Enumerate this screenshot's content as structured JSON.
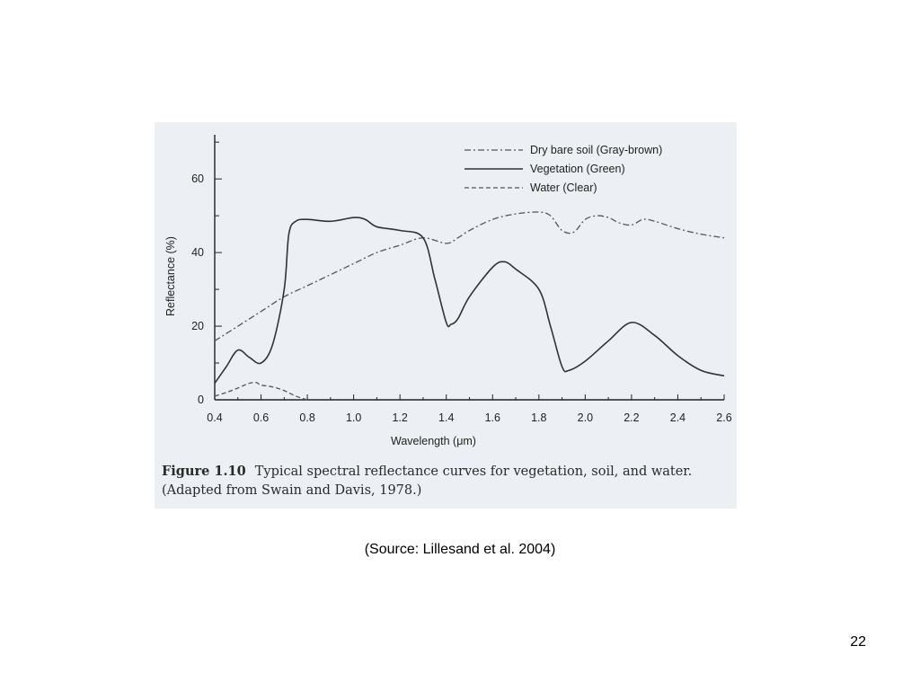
{
  "caption": {
    "figure_number": "Figure 1.10",
    "text": "Typical spectral reflectance curves for vegetation, soil, and water.",
    "adapted": "(Adapted from Swain and Davis, 1978.)"
  },
  "source": "(Source: Lillesand et al. 2004)",
  "page_number": "22",
  "chart_data": {
    "type": "line",
    "xlabel": "Wavelength (μm)",
    "ylabel": "Reflectance (%)",
    "xlim": [
      0.4,
      2.6
    ],
    "ylim": [
      0,
      72
    ],
    "x_ticks": [
      "0.4",
      "0.6",
      "0.8",
      "1.0",
      "1.2",
      "1.4",
      "1.6",
      "1.8",
      "2.0",
      "2.2",
      "2.4",
      "2.6"
    ],
    "y_ticks": [
      "0",
      "20",
      "40",
      "60"
    ],
    "grid": false,
    "legend_position": "top-right",
    "series": [
      {
        "name": "Dry bare soil (Gray-brown)",
        "style": "dash-dot",
        "color": "#555555",
        "x": [
          0.4,
          0.5,
          0.6,
          0.7,
          0.8,
          0.9,
          1.0,
          1.1,
          1.2,
          1.3,
          1.4,
          1.45,
          1.5,
          1.6,
          1.7,
          1.8,
          1.85,
          1.9,
          1.95,
          2.0,
          2.05,
          2.1,
          2.15,
          2.2,
          2.25,
          2.3,
          2.4,
          2.5,
          2.6
        ],
        "y": [
          16,
          20,
          24,
          28,
          31,
          34,
          37,
          40,
          42,
          44,
          42.5,
          44,
          46,
          49,
          50.5,
          51,
          50,
          46,
          45.5,
          49,
          50,
          49.5,
          48,
          47.5,
          49,
          48.5,
          46.5,
          45,
          44
        ]
      },
      {
        "name": "Vegetation (Green)",
        "style": "solid",
        "color": "#333333",
        "x": [
          0.4,
          0.45,
          0.5,
          0.55,
          0.6,
          0.65,
          0.7,
          0.72,
          0.75,
          0.8,
          0.9,
          1.0,
          1.05,
          1.1,
          1.2,
          1.3,
          1.35,
          1.4,
          1.42,
          1.45,
          1.5,
          1.6,
          1.65,
          1.7,
          1.8,
          1.85,
          1.9,
          1.93,
          2.0,
          2.1,
          2.2,
          2.3,
          2.4,
          2.5,
          2.6
        ],
        "y": [
          4.5,
          9,
          13.5,
          11.5,
          10,
          15,
          30,
          45,
          48.5,
          49,
          48.5,
          49.5,
          49,
          47,
          46,
          44,
          33,
          21,
          20.5,
          22,
          28,
          36,
          37.5,
          35.5,
          30,
          20,
          9,
          8,
          10.5,
          16,
          21,
          17.5,
          12,
          8,
          6.5
        ]
      },
      {
        "name": "Water (Clear)",
        "style": "dashed",
        "color": "#555555",
        "x": [
          0.4,
          0.45,
          0.5,
          0.55,
          0.58,
          0.6,
          0.65,
          0.7,
          0.75,
          0.8
        ],
        "y": [
          1,
          2,
          3.2,
          4.5,
          4.7,
          4,
          3.5,
          2.5,
          1,
          0
        ]
      }
    ]
  }
}
